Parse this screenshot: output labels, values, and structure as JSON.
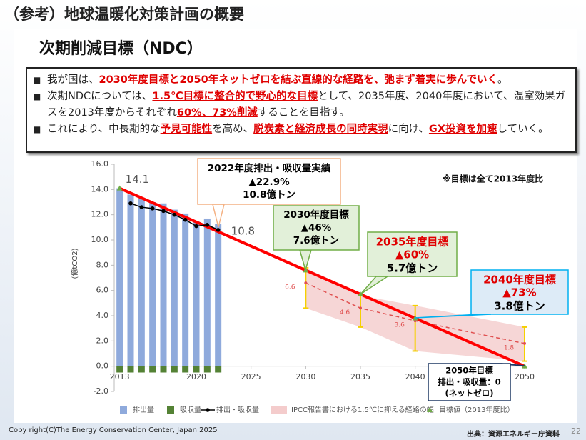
{
  "header": {
    "title": "（参考）地球温暖化対策計画の概要",
    "subtitle": "次期削減目標（NDC）"
  },
  "bullets": [
    [
      {
        "text": "我が国は、",
        "em": false
      },
      {
        "text": "2030年度目標と2050年ネットゼロを結ぶ直線的な経路を、弛まず着実に歩んでいく",
        "em": true
      },
      {
        "text": "。",
        "em": false
      }
    ],
    [
      {
        "text": "次期NDCについては、",
        "em": false
      },
      {
        "text": "1.5℃目標に整合的で野心的な目標",
        "em": true
      },
      {
        "text": "として、2035年度、2040年度において、温室効果ガスを2013年度からそれぞれ",
        "em": false
      },
      {
        "text": "60%、73%削減",
        "em": true
      },
      {
        "text": "することを目指す。",
        "em": false
      }
    ],
    [
      {
        "text": "これにより、中長期的な",
        "em": false
      },
      {
        "text": "予見可能性",
        "em": true
      },
      {
        "text": "を高め、",
        "em": false
      },
      {
        "text": "脱炭素と経済成長の同時実現",
        "em": true
      },
      {
        "text": "に向け、",
        "em": false
      },
      {
        "text": "GX投資を加速",
        "em": true
      },
      {
        "text": "していく。",
        "em": false
      }
    ]
  ],
  "chart_data": {
    "type": "bar",
    "ylabel": "(億tCO2)",
    "note": "※目標は全て2013年度比",
    "xlim": [
      2012.5,
      2050
    ],
    "xticks": [
      2013,
      2020,
      2025,
      2030,
      2035,
      2040,
      2050
    ],
    "ylim": [
      -2,
      16
    ],
    "yticks": [
      {
        "value": -2,
        "label": "-2.0"
      },
      {
        "value": 0,
        "label": "0.0"
      },
      {
        "value": 2,
        "label": "2.0"
      },
      {
        "value": 4,
        "label": "4.0"
      },
      {
        "value": 6,
        "label": "6.0"
      },
      {
        "value": 8,
        "label": "8.0"
      },
      {
        "value": 10,
        "label": "10.0"
      },
      {
        "value": 12,
        "label": "12.0"
      },
      {
        "value": 14,
        "label": "14.0"
      },
      {
        "value": 16,
        "label": "16.0"
      }
    ],
    "series": [
      {
        "name": "排出量",
        "type": "bar",
        "color": "#8faadc",
        "x": [
          2013,
          2014,
          2015,
          2016,
          2017,
          2018,
          2019,
          2020,
          2021,
          2022
        ],
        "values": [
          14.1,
          13.6,
          13.3,
          13.0,
          12.9,
          12.4,
          12.1,
          11.5,
          11.7,
          11.3
        ]
      },
      {
        "name": "吸収量",
        "type": "bar",
        "color": "#548235",
        "x": [
          2013,
          2014,
          2015,
          2016,
          2017,
          2018,
          2019,
          2020,
          2021,
          2022
        ],
        "values": [
          -0.5,
          -0.5,
          -0.5,
          -0.5,
          -0.5,
          -0.5,
          -0.5,
          -0.5,
          -0.5,
          -0.5
        ]
      },
      {
        "name": "排出・吸収量",
        "type": "line",
        "color": "#000000",
        "x": [
          2014,
          2015,
          2016,
          2017,
          2018,
          2019,
          2020,
          2021,
          2022
        ],
        "values": [
          12.9,
          12.6,
          12.5,
          12.3,
          12.0,
          11.6,
          11.1,
          11.2,
          10.8
        ]
      },
      {
        "name": "IPCC報告書における1.5℃に抑える経路の幅",
        "type": "range",
        "color": "#e05050",
        "band_color": "#f4cccc",
        "error_color": "#f5d000",
        "x": [
          2030,
          2035,
          2040,
          2050
        ],
        "values": [
          6.6,
          4.6,
          3.6,
          1.8
        ],
        "low": [
          4.6,
          3.1,
          1.2,
          0.4
        ],
        "high": [
          7.8,
          5.6,
          4.8,
          3.1
        ]
      },
      {
        "name": "目標値（2013年度比）",
        "type": "target",
        "color": "#70ad47",
        "line_color": "#ff0000",
        "x": [
          2013,
          2030,
          2035,
          2040,
          2050
        ],
        "values": [
          14.1,
          7.6,
          5.7,
          3.8,
          0
        ]
      }
    ],
    "annotations": [
      {
        "lines": [
          "2022年度排出・吸収量実績",
          "▲22.9%",
          "10.8億トン"
        ],
        "line_colors": [
          "#000000",
          "#000000",
          "#000000"
        ],
        "border": "#f4b183",
        "fill": "#ffffff"
      },
      {
        "lines": [
          "2030年度目標",
          "▲46%",
          "7.6億トン"
        ],
        "line_colors": [
          "#000000",
          "#000000",
          "#000000"
        ],
        "border": "#70ad47",
        "fill": "#e2f0d9"
      },
      {
        "lines": [
          "2035年度目標",
          "▲60%",
          "5.7億トン"
        ],
        "line_colors": [
          "#e00000",
          "#e00000",
          "#000000"
        ],
        "border": "#70ad47",
        "fill": "#e2f0d9"
      },
      {
        "lines": [
          "2040年度目標",
          "▲73%",
          "3.8億トン"
        ],
        "line_colors": [
          "#e00000",
          "#e00000",
          "#000000"
        ],
        "border": "#00b0f0",
        "fill": "#ddebf7"
      },
      {
        "lines": [
          "2050年目標",
          "排出・吸収量：0",
          "(ネットゼロ)"
        ],
        "line_colors": [
          "#000000",
          "#000000",
          "#000000"
        ],
        "border": "#1f3864",
        "fill": "#ffffff"
      }
    ]
  },
  "footer": {
    "copyright": "Copy right(C)The Energy Conservation Center, Japan 2025",
    "source": "出典：資源エネルギー庁資料",
    "page": 22
  }
}
